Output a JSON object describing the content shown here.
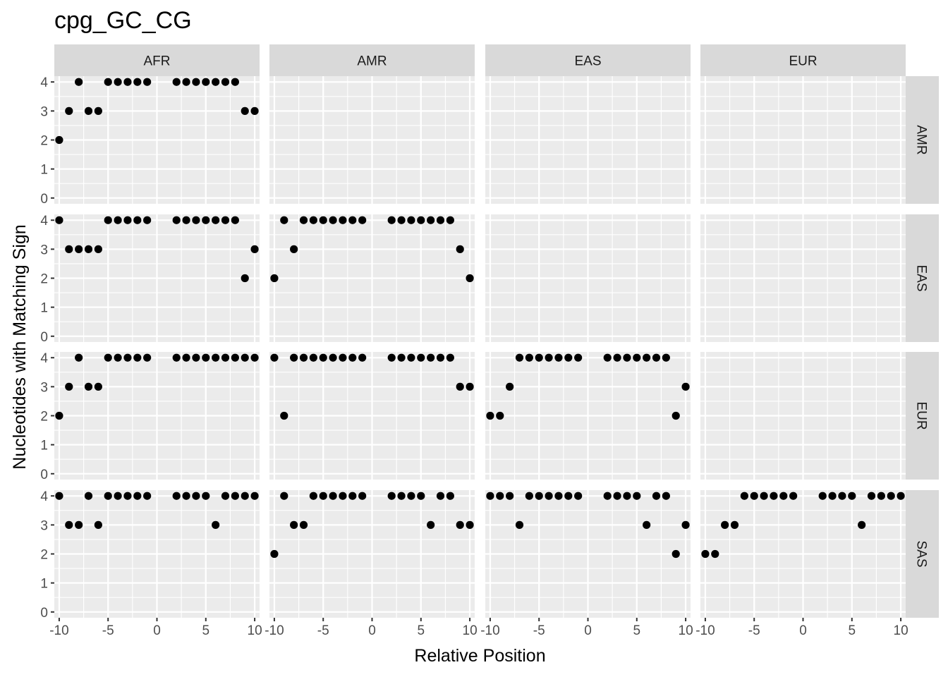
{
  "chart_data": {
    "type": "scatter",
    "title": "cpg_GC_CG",
    "xlabel": "Relative Position",
    "ylabel": "Nucleotides with Matching Sign",
    "xlim": [
      -10.5,
      10.5
    ],
    "ylim": [
      -0.2,
      4.2
    ],
    "x_ticks": [
      -10,
      -5,
      0,
      5,
      10
    ],
    "y_ticks": [
      0,
      1,
      2,
      3,
      4
    ],
    "x_tick_labels": [
      "-10",
      "-5",
      "0",
      "5",
      "10"
    ],
    "y_tick_labels": [
      "0",
      "1",
      "2",
      "3",
      "4"
    ],
    "grid": true,
    "legend": "none",
    "point_color": "#000000",
    "panel_background": "#ebebeb",
    "strip_background": "#d9d9d9",
    "col_facets": [
      "AFR",
      "AMR",
      "EAS",
      "EUR"
    ],
    "row_facets": [
      "AMR",
      "EAS",
      "EUR",
      "SAS"
    ],
    "panels": [
      {
        "col": "AFR",
        "row": "AMR",
        "x": [
          -10,
          -9,
          -8,
          -7,
          -6,
          -5,
          -4,
          -3,
          -2,
          -1,
          2,
          3,
          4,
          5,
          6,
          7,
          8,
          9,
          10
        ],
        "y": [
          2,
          3,
          4,
          3,
          3,
          4,
          4,
          4,
          4,
          4,
          4,
          4,
          4,
          4,
          4,
          4,
          4,
          3,
          3
        ]
      },
      {
        "col": "AFR",
        "row": "EAS",
        "x": [
          -10,
          -9,
          -8,
          -7,
          -6,
          -5,
          -4,
          -3,
          -2,
          -1,
          2,
          3,
          4,
          5,
          6,
          7,
          8,
          9,
          10
        ],
        "y": [
          4,
          3,
          3,
          3,
          3,
          4,
          4,
          4,
          4,
          4,
          4,
          4,
          4,
          4,
          4,
          4,
          4,
          2,
          3
        ]
      },
      {
        "col": "AMR",
        "row": "EAS",
        "x": [
          -10,
          -9,
          -8,
          -7,
          -6,
          -5,
          -4,
          -3,
          -2,
          -1,
          2,
          3,
          4,
          5,
          6,
          7,
          8,
          9,
          10
        ],
        "y": [
          2,
          4,
          3,
          4,
          4,
          4,
          4,
          4,
          4,
          4,
          4,
          4,
          4,
          4,
          4,
          4,
          4,
          3,
          2
        ]
      },
      {
        "col": "AFR",
        "row": "EUR",
        "x": [
          -10,
          -9,
          -8,
          -7,
          -6,
          -5,
          -4,
          -3,
          -2,
          -1,
          2,
          3,
          4,
          5,
          6,
          7,
          8,
          9,
          10
        ],
        "y": [
          2,
          3,
          4,
          3,
          3,
          4,
          4,
          4,
          4,
          4,
          4,
          4,
          4,
          4,
          4,
          4,
          4,
          4,
          4
        ]
      },
      {
        "col": "AMR",
        "row": "EUR",
        "x": [
          -10,
          -9,
          -8,
          -7,
          -6,
          -5,
          -4,
          -3,
          -2,
          -1,
          2,
          3,
          4,
          5,
          6,
          7,
          8,
          9,
          10
        ],
        "y": [
          4,
          2,
          4,
          4,
          4,
          4,
          4,
          4,
          4,
          4,
          4,
          4,
          4,
          4,
          4,
          4,
          4,
          3,
          3
        ]
      },
      {
        "col": "EAS",
        "row": "EUR",
        "x": [
          -10,
          -9,
          -8,
          -7,
          -6,
          -5,
          -4,
          -3,
          -2,
          -1,
          2,
          3,
          4,
          5,
          6,
          7,
          8,
          9,
          10
        ],
        "y": [
          2,
          2,
          3,
          4,
          4,
          4,
          4,
          4,
          4,
          4,
          4,
          4,
          4,
          4,
          4,
          4,
          4,
          2,
          3
        ]
      },
      {
        "col": "AFR",
        "row": "SAS",
        "x": [
          -10,
          -9,
          -8,
          -7,
          -6,
          -5,
          -4,
          -3,
          -2,
          -1,
          2,
          3,
          4,
          5,
          6,
          7,
          8,
          9,
          10
        ],
        "y": [
          4,
          3,
          3,
          4,
          3,
          4,
          4,
          4,
          4,
          4,
          4,
          4,
          4,
          4,
          3,
          4,
          4,
          4,
          4
        ]
      },
      {
        "col": "AMR",
        "row": "SAS",
        "x": [
          -10,
          -9,
          -8,
          -7,
          -6,
          -5,
          -4,
          -3,
          -2,
          -1,
          2,
          3,
          4,
          5,
          6,
          7,
          8,
          9,
          10
        ],
        "y": [
          2,
          4,
          3,
          3,
          4,
          4,
          4,
          4,
          4,
          4,
          4,
          4,
          4,
          4,
          3,
          4,
          4,
          3,
          3
        ]
      },
      {
        "col": "EAS",
        "row": "SAS",
        "x": [
          -10,
          -9,
          -8,
          -7,
          -6,
          -5,
          -4,
          -3,
          -2,
          -1,
          2,
          3,
          4,
          5,
          6,
          7,
          8,
          9,
          10
        ],
        "y": [
          4,
          4,
          4,
          3,
          4,
          4,
          4,
          4,
          4,
          4,
          4,
          4,
          4,
          4,
          3,
          4,
          4,
          2,
          3
        ]
      },
      {
        "col": "EUR",
        "row": "SAS",
        "x": [
          -10,
          -9,
          -8,
          -7,
          -6,
          -5,
          -4,
          -3,
          -2,
          -1,
          2,
          3,
          4,
          5,
          6,
          7,
          8,
          9,
          10
        ],
        "y": [
          2,
          2,
          3,
          3,
          4,
          4,
          4,
          4,
          4,
          4,
          4,
          4,
          4,
          4,
          3,
          4,
          4,
          4,
          4
        ]
      }
    ]
  }
}
